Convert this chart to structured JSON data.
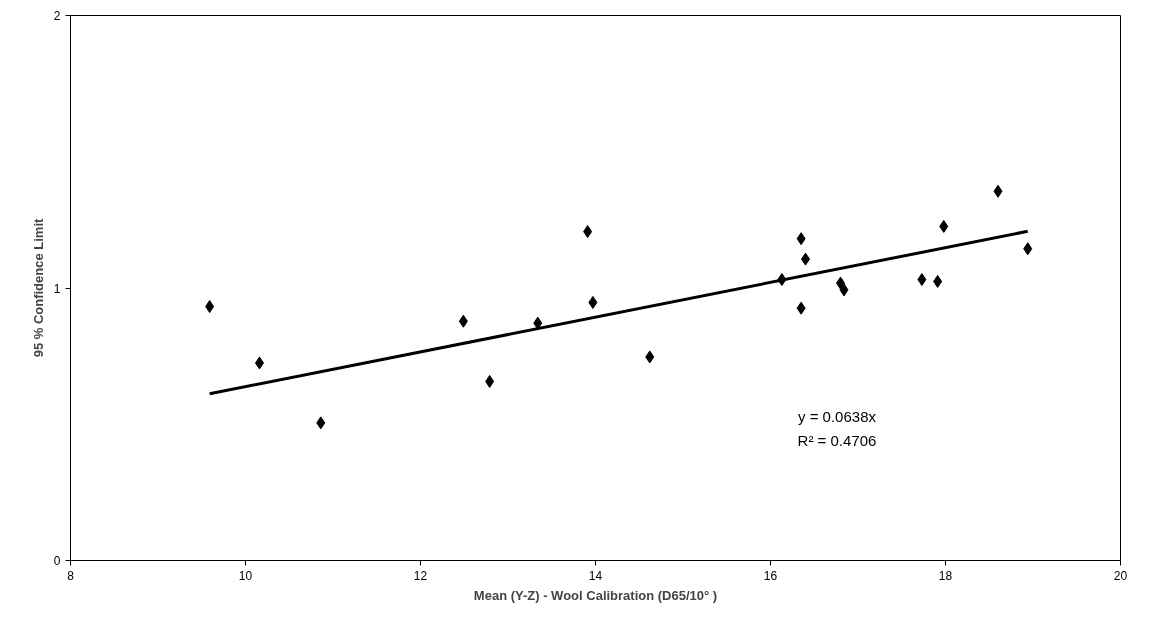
{
  "chart_data": {
    "type": "scatter",
    "xlabel": "Mean (Y-Z) - Wool Calibration (D65/10° )",
    "ylabel": "95 % Confidence Limit",
    "xlim": [
      8,
      20
    ],
    "xticks": [
      8,
      10,
      12,
      14,
      16,
      18,
      20
    ],
    "ylim": [
      0,
      2
    ],
    "yticks": [
      0,
      1,
      2
    ],
    "grid": false,
    "annotations": [
      "y = 0.0638x",
      "R² = 0.4706"
    ],
    "series": [
      {
        "marker": "diamond",
        "color": "#000000",
        "x": [
          9.59,
          10.16,
          10.86,
          12.49,
          12.79,
          13.34,
          13.91,
          13.97,
          14.62,
          16.13,
          16.35,
          16.4,
          16.35,
          16.8,
          16.84,
          17.73,
          17.91,
          17.98,
          18.6,
          18.94
        ],
        "values": [
          0.932,
          0.725,
          0.505,
          0.878,
          0.657,
          0.871,
          1.207,
          0.947,
          0.747,
          1.031,
          1.181,
          1.106,
          0.926,
          1.018,
          0.993,
          1.031,
          1.024,
          1.226,
          1.355,
          1.144
        ]
      },
      {
        "type": "line",
        "marker": "none",
        "color": "#000000",
        "line_style": "solid",
        "x": [
          9.59,
          18.94
        ],
        "values": [
          0.612,
          1.208
        ]
      }
    ]
  }
}
